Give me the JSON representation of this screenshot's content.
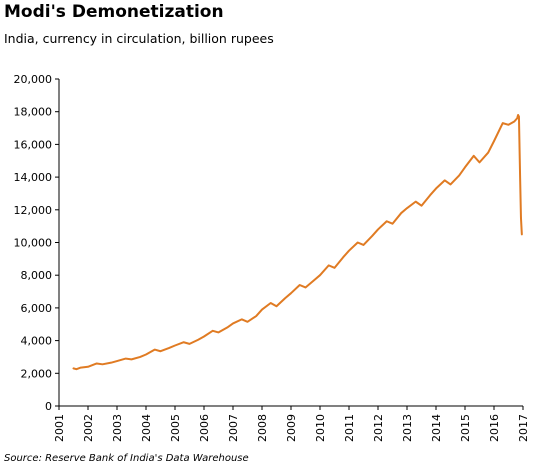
{
  "title": "Modi's Demonetization",
  "subtitle": "India, currency in circulation, billion rupees",
  "source": "Source: Reserve Bank of India's Data Warehouse",
  "colors": {
    "line": "#E07B23",
    "axis": "#000000"
  },
  "chart_data": {
    "type": "line",
    "title": "Modi's Demonetization",
    "subtitle": "India, currency in circulation, billion rupees",
    "xlabel": "",
    "ylabel": "",
    "xlim": [
      2001,
      2017
    ],
    "ylim": [
      0,
      20000
    ],
    "grid": false,
    "legend": "none",
    "x_ticks": [
      "2001",
      "2002",
      "2003",
      "2004",
      "2005",
      "2006",
      "2007",
      "2008",
      "2009",
      "2010",
      "2011",
      "2012",
      "2013",
      "2014",
      "2015",
      "2016",
      "2017"
    ],
    "y_ticks": [
      "0",
      "2,000",
      "4,000",
      "6,000",
      "8,000",
      "10,000",
      "12,000",
      "14,000",
      "16,000",
      "18,000",
      "20,000"
    ],
    "series": [
      {
        "x": [
          2001.5,
          2001.6,
          2001.75,
          2002.0,
          2002.3,
          2002.5,
          2002.8,
          2003.0,
          2003.3,
          2003.5,
          2003.8,
          2004.0,
          2004.3,
          2004.5,
          2004.8,
          2005.0,
          2005.3,
          2005.5,
          2005.8,
          2006.0,
          2006.3,
          2006.5,
          2006.8,
          2007.0,
          2007.3,
          2007.5,
          2007.8,
          2008.0,
          2008.3,
          2008.5,
          2008.8,
          2009.0,
          2009.3,
          2009.5,
          2009.8,
          2010.0,
          2010.3,
          2010.5,
          2010.8,
          2011.0,
          2011.3,
          2011.5,
          2011.8,
          2012.0,
          2012.3,
          2012.5,
          2012.8,
          2013.0,
          2013.3,
          2013.5,
          2013.8,
          2014.0,
          2014.3,
          2014.5,
          2014.8,
          2015.0,
          2015.3,
          2015.5,
          2015.8,
          2016.0,
          2016.3,
          2016.5,
          2016.7,
          2016.8,
          2016.83,
          2016.86,
          2016.9,
          2016.93,
          2016.96
        ],
        "values": [
          2300,
          2250,
          2350,
          2400,
          2600,
          2550,
          2650,
          2750,
          2900,
          2850,
          3000,
          3150,
          3450,
          3350,
          3550,
          3700,
          3900,
          3800,
          4050,
          4250,
          4600,
          4500,
          4800,
          5050,
          5300,
          5150,
          5500,
          5900,
          6300,
          6100,
          6600,
          6900,
          7400,
          7250,
          7700,
          8000,
          8600,
          8450,
          9100,
          9500,
          10000,
          9850,
          10400,
          10800,
          11300,
          11150,
          11800,
          12100,
          12500,
          12250,
          12900,
          13300,
          13800,
          13550,
          14100,
          14600,
          15300,
          14900,
          15500,
          16200,
          17300,
          17200,
          17400,
          17600,
          17800,
          17700,
          14000,
          11500,
          10500
        ]
      }
    ]
  }
}
